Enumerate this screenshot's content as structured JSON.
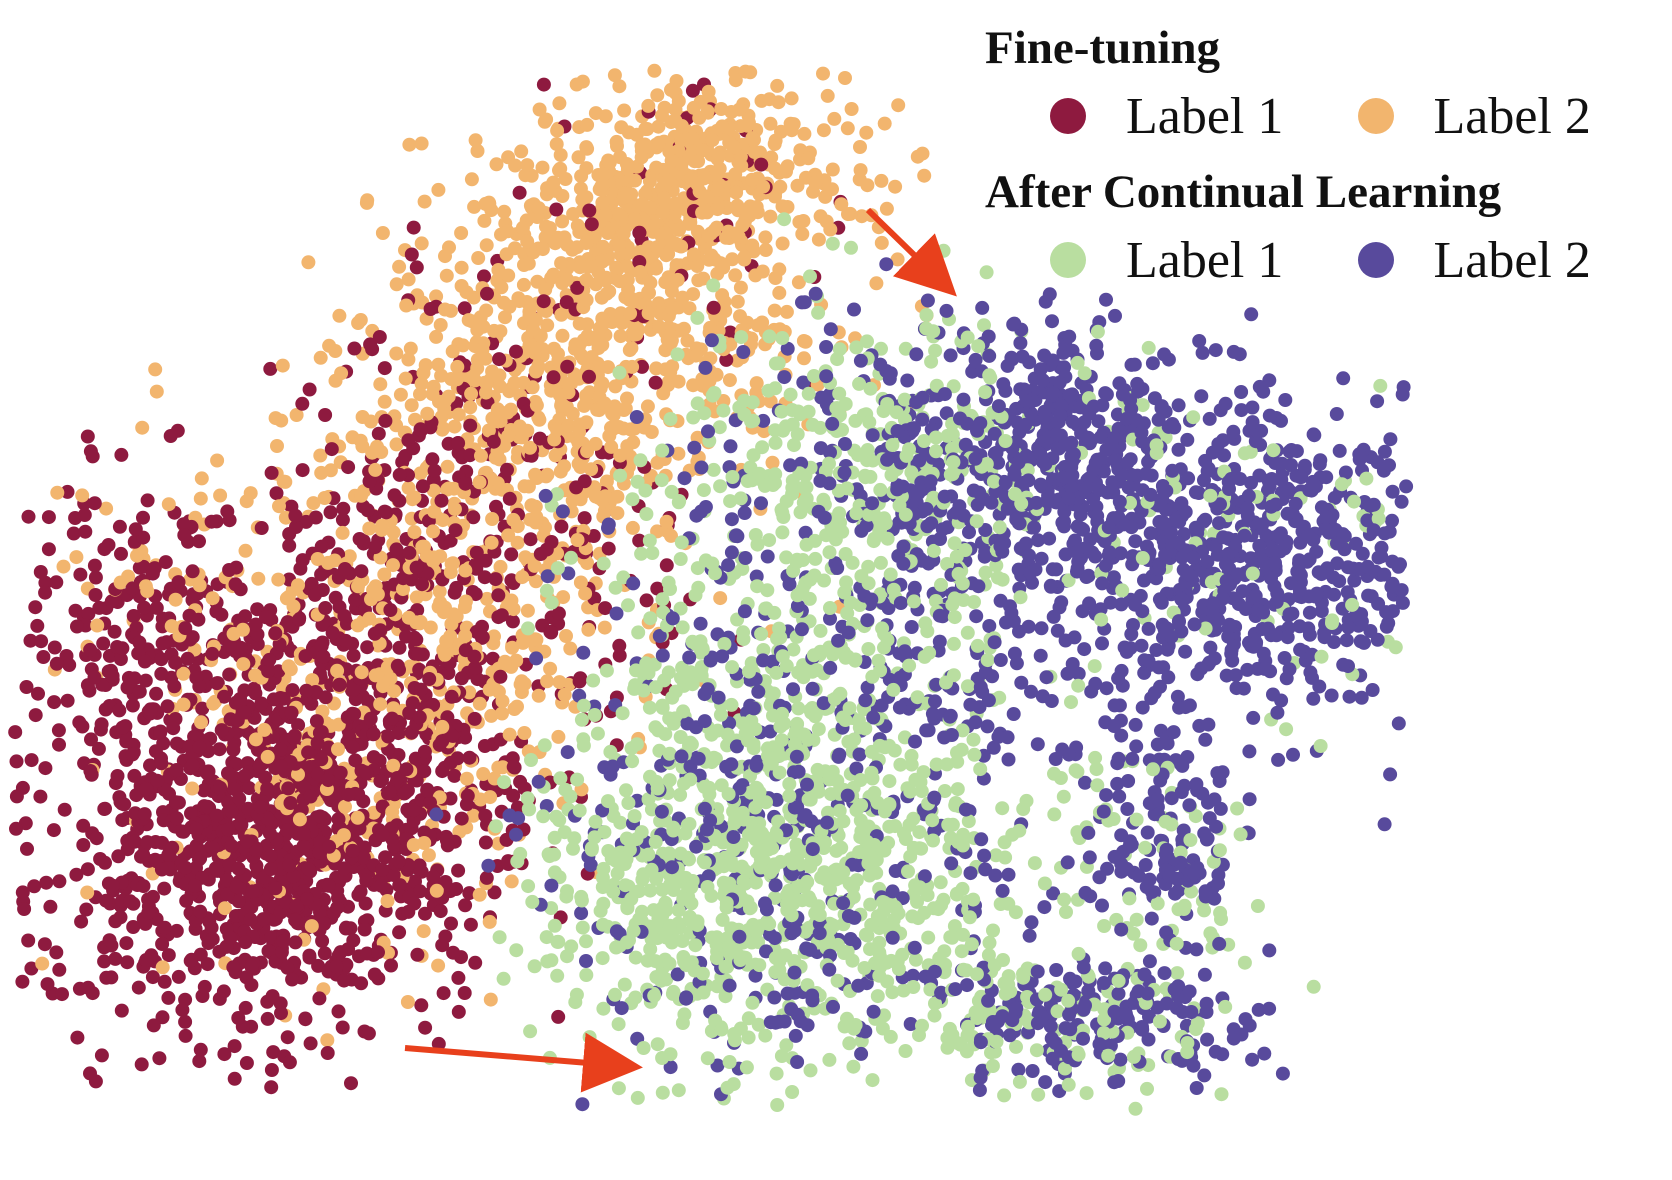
{
  "chart_data": {
    "type": "scatter",
    "description_source": "t-SNE style 2D embedding, no axes shown",
    "groups": [
      {
        "title": "Fine-tuning",
        "series": [
          {
            "name": "Label 1",
            "color": "#8e1a3f"
          },
          {
            "name": "Label 2",
            "color": "#f2b56e"
          }
        ]
      },
      {
        "title": "After Continual Learning",
        "series": [
          {
            "name": "Label 1",
            "color": "#b9dea0"
          },
          {
            "name": "Label 2",
            "color": "#584a9c"
          }
        ]
      }
    ],
    "axes": {
      "shown": false
    },
    "grid": false,
    "legend_placement": "top-right",
    "annotations": [
      {
        "type": "arrow",
        "color": "#e8401c"
      },
      {
        "type": "arrow",
        "color": "#e8401c"
      }
    ]
  }
}
